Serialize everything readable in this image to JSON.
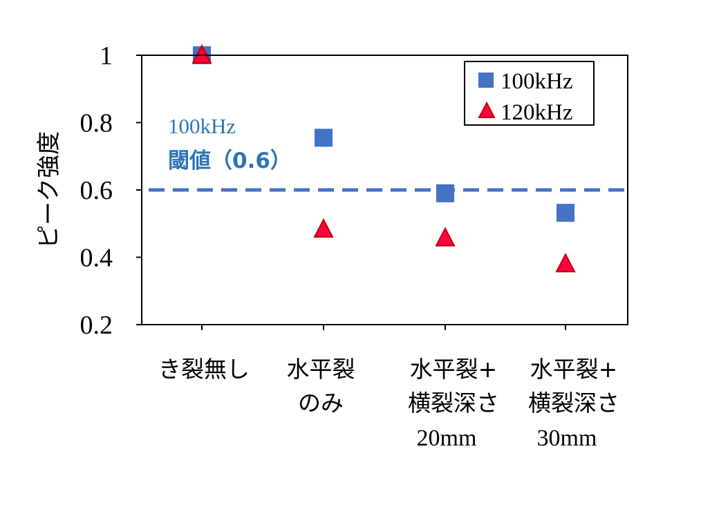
{
  "chart_data": {
    "type": "scatter",
    "ylabel": "ピーク強度",
    "ylim": [
      0.2,
      1.0
    ],
    "yticks": [
      "0.2",
      "0.4",
      "0.6",
      "0.8",
      "1"
    ],
    "categories": [
      [
        "き裂無し"
      ],
      [
        "水平裂",
        "のみ"
      ],
      [
        "水平裂+",
        "横裂深さ",
        "20mm"
      ],
      [
        "水平裂+",
        "横裂深さ",
        "30mm"
      ]
    ],
    "series": [
      {
        "name": "100kHz",
        "marker": "square",
        "color": "#4472C4",
        "values": [
          1.0,
          0.755,
          0.59,
          0.532
        ]
      },
      {
        "name": "120kHz",
        "marker": "triangle",
        "color": "#FF0040",
        "values": [
          1.0,
          0.483,
          0.457,
          0.38
        ]
      }
    ],
    "threshold": {
      "value": 0.6,
      "label_line1": "100kHz",
      "label_line2": "閾値（0.6）",
      "color": "#4472C4",
      "style": "dashed"
    },
    "legend_position": "top-right",
    "grid": false
  }
}
